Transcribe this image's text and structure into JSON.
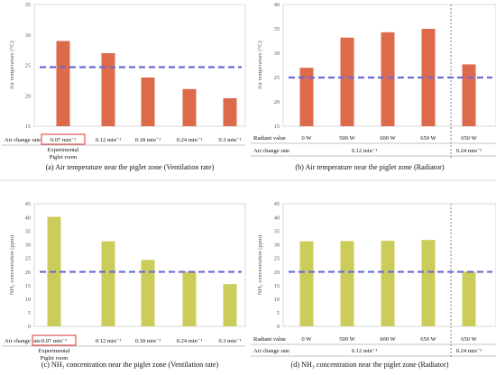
{
  "colors": {
    "temp_bar": "#de6a4c",
    "nh3_bar": "#cccc5a",
    "dashed_line": "#6a6ad8",
    "highlight_box": "#dd3333"
  },
  "chart_data": [
    {
      "id": "a",
      "type": "bar",
      "title": "(a) Air temperature near the piglet zone (Ventilation rate)",
      "ylabel": "Air temperature (°C)",
      "ylim": [
        15,
        35
      ],
      "yticks": [
        15,
        20,
        25,
        30,
        35
      ],
      "reference_line": 24.7,
      "row_labels": [
        "Air change rate"
      ],
      "categories": [
        "0.07 min⁻¹",
        "0.12 min⁻¹",
        "0.18 min⁻¹",
        "0.24 min⁻¹",
        "0.3 min⁻¹"
      ],
      "values": [
        29.0,
        27.0,
        23.0,
        21.1,
        19.6
      ],
      "highlight_index": 0,
      "highlight_note": [
        "Experimental",
        "Piglet room"
      ]
    },
    {
      "id": "b",
      "type": "bar",
      "title": "(b) Air temperature near the piglet zone (Radiator)",
      "ylabel": "Air temperature (°C)",
      "ylim": [
        15,
        40
      ],
      "yticks": [
        15,
        20,
        25,
        30,
        35,
        40
      ],
      "reference_line": 25.0,
      "row_labels": [
        "Radiant value",
        "Air change rate"
      ],
      "categories": [
        "0 W",
        "500 W",
        "600 W",
        "650 W",
        "650 W"
      ],
      "group_labels": [
        "0.12 min⁻¹",
        "0.24 min⁻¹"
      ],
      "values": [
        27.0,
        33.2,
        34.3,
        35.0,
        27.7
      ]
    },
    {
      "id": "c",
      "type": "bar",
      "title": "(c) NH₃ concentration near the piglet zone (Ventilation rate)",
      "ylabel": "NH₃ concentration (ppm)",
      "ylim": [
        0,
        45
      ],
      "yticks": [
        0,
        5,
        10,
        15,
        20,
        25,
        30,
        35,
        40,
        45
      ],
      "reference_line": 20,
      "row_labels": [
        "Air change rate"
      ],
      "categories": [
        "0.07 min⁻¹",
        "0.12 min⁻¹",
        "0.18 min⁻¹",
        "0.24 min⁻¹",
        "0.3 min⁻¹"
      ],
      "values": [
        40.2,
        31.2,
        24.4,
        20.1,
        15.5
      ],
      "highlight_index": 0,
      "highlight_note": [
        "Experimental",
        "Piglet room"
      ]
    },
    {
      "id": "d",
      "type": "bar",
      "title": "(d) NH₃ concentration near the piglet zone (Radiator)",
      "ylabel": "NH₃ concentration (ppm)",
      "ylim": [
        0,
        45
      ],
      "yticks": [
        0,
        5,
        10,
        15,
        20,
        25,
        30,
        35,
        40,
        45
      ],
      "reference_line": 20,
      "row_labels": [
        "Radiant value",
        "Air change rate"
      ],
      "categories": [
        "0 W",
        "500 W",
        "600 W",
        "650 W",
        "650 W"
      ],
      "group_labels": [
        "0.12 min⁻¹",
        "0.24 min⁻¹"
      ],
      "values": [
        31.2,
        31.3,
        31.4,
        31.7,
        20.1
      ]
    }
  ]
}
